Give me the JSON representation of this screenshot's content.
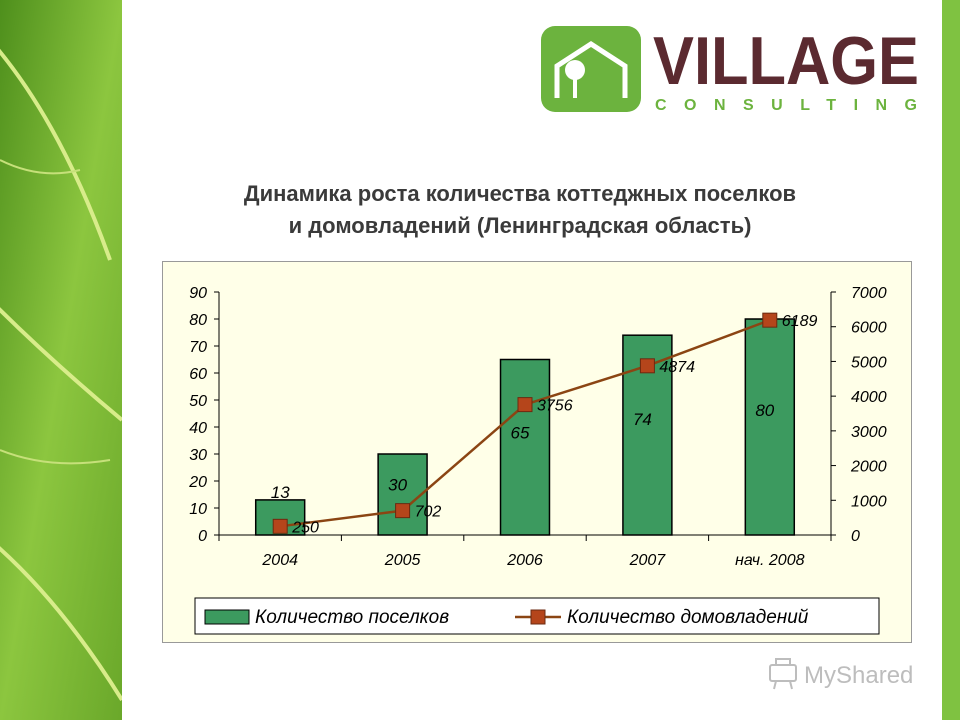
{
  "brand": {
    "name": "VILLAGE",
    "sub": "CONSULTING",
    "green": "#6cb33e",
    "maroon": "#5b2a30"
  },
  "slide": {
    "title_line1": "Динамика роста количества коттеджных поселков",
    "title_line2": "и домовладений (Ленинградская область)"
  },
  "watermark": {
    "text": "MyShared",
    "icon": "projector-icon"
  },
  "chart_data": {
    "type": "bar+line",
    "categories": [
      "2004",
      "2005",
      "2006",
      "2007",
      "нач. 2008"
    ],
    "series": [
      {
        "name": "Количество поселков",
        "type": "bar",
        "axis": "left",
        "values": [
          13,
          30,
          65,
          74,
          80
        ],
        "color": "#3c9a5f"
      },
      {
        "name": "Количество домовладений",
        "type": "line",
        "axis": "right",
        "values": [
          250,
          702,
          3756,
          4874,
          6189
        ],
        "color": "#8b4513",
        "marker_color": "#b5451b"
      }
    ],
    "y_left": {
      "range": [
        0,
        90
      ],
      "ticks": [
        "0",
        "10",
        "20",
        "30",
        "40",
        "50",
        "60",
        "70",
        "80",
        "90"
      ]
    },
    "y_right": {
      "range": [
        0,
        7000
      ],
      "ticks": [
        "0",
        "1000",
        "2000",
        "3000",
        "4000",
        "5000",
        "6000",
        "7000"
      ]
    },
    "legend": "bottom",
    "grid": false
  }
}
